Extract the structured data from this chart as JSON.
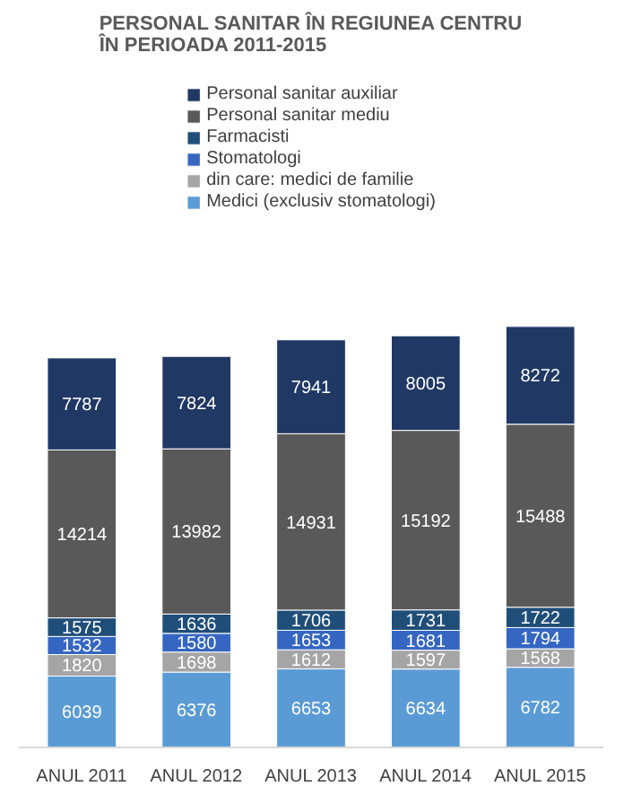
{
  "chart_data": {
    "type": "bar",
    "stacked": true,
    "data_labels": true,
    "legend": "top",
    "grid": false,
    "title": "PERSONAL SANITAR ÎN REGIUNEA CENTRU\nÎN PERIOADA 2011-2015",
    "categories": [
      "ANUL 2011",
      "ANUL 2012",
      "ANUL 2013",
      "ANUL 2014",
      "ANUL 2015"
    ],
    "series": [
      {
        "name": "Medici (exclusiv stomatologi)",
        "color": "#5b9bd5",
        "values": [
          6039,
          6376,
          6653,
          6634,
          6782
        ]
      },
      {
        "name": "din care: medici de familie",
        "color": "#a5a5a5",
        "values": [
          1820,
          1698,
          1612,
          1597,
          1568
        ]
      },
      {
        "name": "Stomatologi",
        "color": "#3466c2",
        "values": [
          1532,
          1580,
          1653,
          1681,
          1794
        ]
      },
      {
        "name": "Farmacisti",
        "color": "#1f4e79",
        "values": [
          1575,
          1636,
          1706,
          1731,
          1722
        ]
      },
      {
        "name": "Personal sanitar mediu",
        "color": "#595959",
        "values": [
          14214,
          13982,
          14931,
          15192,
          15488
        ]
      },
      {
        "name": "Personal sanitar auxiliar",
        "color": "#203864",
        "values": [
          7787,
          7824,
          7941,
          8005,
          8272
        ]
      }
    ]
  }
}
